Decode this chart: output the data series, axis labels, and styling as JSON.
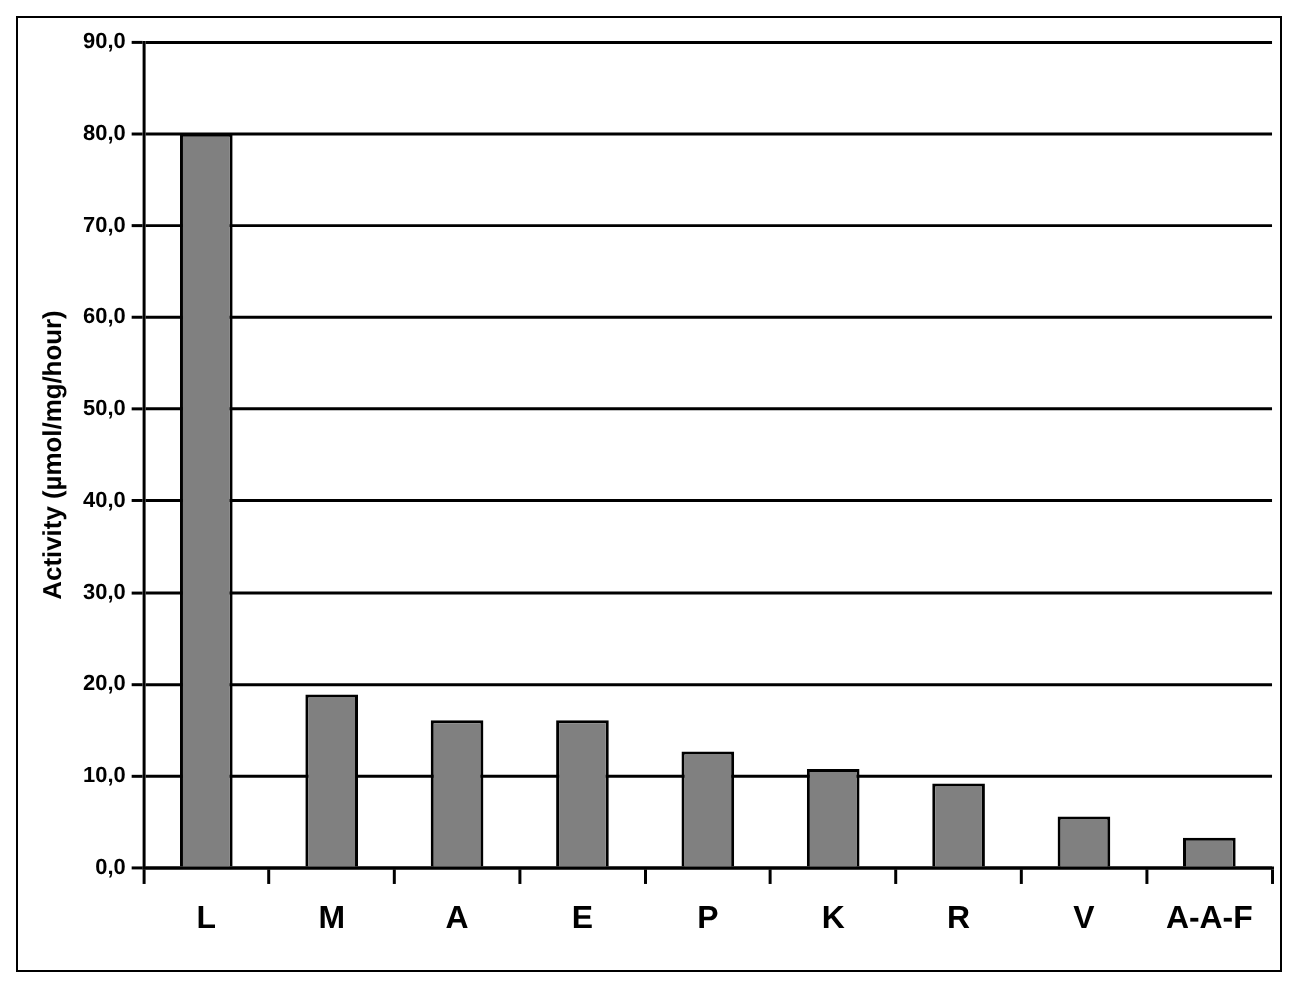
{
  "chart_data": {
    "type": "bar",
    "ylabel": "Activity (µmol/mg/hour)",
    "categories": [
      "L",
      "M",
      "A",
      "E",
      "P",
      "K",
      "R",
      "V",
      "A-A-F"
    ],
    "values": [
      80.0,
      18.9,
      16.1,
      16.1,
      12.7,
      10.8,
      9.2,
      5.6,
      3.3
    ],
    "color": "#808080",
    "ylim": [
      0,
      90
    ],
    "yticks": [
      {
        "value": 0,
        "label": "0,0"
      },
      {
        "value": 10,
        "label": "10,0"
      },
      {
        "value": 20,
        "label": "20,0"
      },
      {
        "value": 30,
        "label": "30,0"
      },
      {
        "value": 40,
        "label": "40,0"
      },
      {
        "value": 50,
        "label": "50,0"
      },
      {
        "value": 60,
        "label": "60,0"
      },
      {
        "value": 70,
        "label": "70,0"
      },
      {
        "value": 80,
        "label": "80,0"
      },
      {
        "value": 90,
        "label": "90,0"
      }
    ],
    "grid": "y",
    "legend": false
  }
}
